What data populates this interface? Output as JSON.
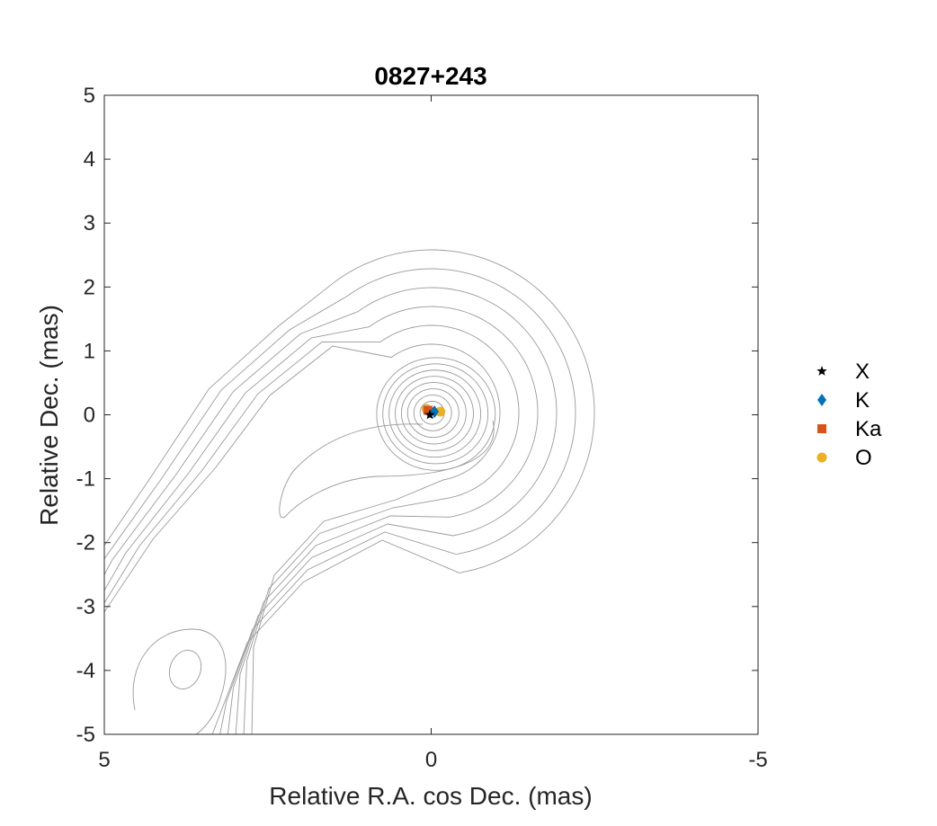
{
  "chart_data": {
    "type": "scatter",
    "title": "0827+243",
    "xlabel": "Relative R.A. cos Dec. (mas)",
    "ylabel": "Relative Dec. (mas)",
    "xlim": [
      5,
      -5
    ],
    "ylim": [
      -5,
      5
    ],
    "x_ticks": [
      5,
      0,
      -5
    ],
    "x_tick_labels": [
      "5",
      "0",
      "-5"
    ],
    "y_ticks": [
      5,
      4,
      3,
      2,
      1,
      0,
      -1,
      -2,
      -3,
      -4,
      -5
    ],
    "y_tick_labels": [
      "5",
      "4",
      "3",
      "2",
      "1",
      "0",
      "-1",
      "-2",
      "-3",
      "-4",
      "-5"
    ],
    "grid": false,
    "legend_position": "outside-right",
    "background": "contour map (gray contours)",
    "contour_color": "#9a9a9a",
    "series": [
      {
        "name": "X",
        "marker": "star",
        "color": "#000000",
        "points": [
          {
            "x": 0.02,
            "y": 0.0
          }
        ]
      },
      {
        "name": "K",
        "marker": "diamond",
        "color": "#0072BD",
        "points": [
          {
            "x": -0.05,
            "y": 0.05
          }
        ]
      },
      {
        "name": "Ka",
        "marker": "square",
        "color": "#D95319",
        "points": [
          {
            "x": 0.05,
            "y": 0.07
          }
        ]
      },
      {
        "name": "O",
        "marker": "circle",
        "color": "#EDB120",
        "points": [
          {
            "x": 0.07,
            "y": 0.09
          },
          {
            "x": -0.14,
            "y": 0.05
          }
        ]
      }
    ]
  }
}
